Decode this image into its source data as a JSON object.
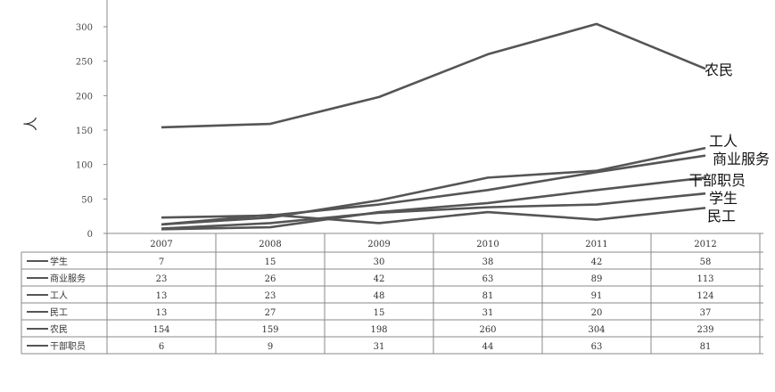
{
  "chart_data": {
    "type": "line",
    "title": "",
    "xlabel": "",
    "ylabel": "人",
    "ylim": [
      0,
      300
    ],
    "y_ticks": [
      0,
      50,
      100,
      150,
      200,
      250,
      300
    ],
    "grid": false,
    "legend": "data-table",
    "categories": [
      "2007",
      "2008",
      "2009",
      "2010",
      "2011",
      "2012"
    ],
    "series": [
      {
        "name": "学生",
        "table_label": "学生",
        "values": [
          7,
          15,
          30,
          38,
          42,
          58
        ]
      },
      {
        "name": "商业服务",
        "table_label": "商业服务",
        "values": [
          23,
          26,
          42,
          63,
          89,
          113
        ]
      },
      {
        "name": "工人",
        "table_label": "工人",
        "values": [
          13,
          23,
          48,
          81,
          91,
          124
        ]
      },
      {
        "name": "民工",
        "table_label": "民工",
        "values": [
          13,
          27,
          15,
          31,
          20,
          37
        ]
      },
      {
        "name": "农民",
        "table_label": "农民",
        "values": [
          154,
          159,
          198,
          260,
          304,
          239
        ]
      },
      {
        "name": "干部职员",
        "table_label": "干部职员",
        "values": [
          6,
          9,
          31,
          44,
          63,
          81
        ]
      }
    ]
  }
}
